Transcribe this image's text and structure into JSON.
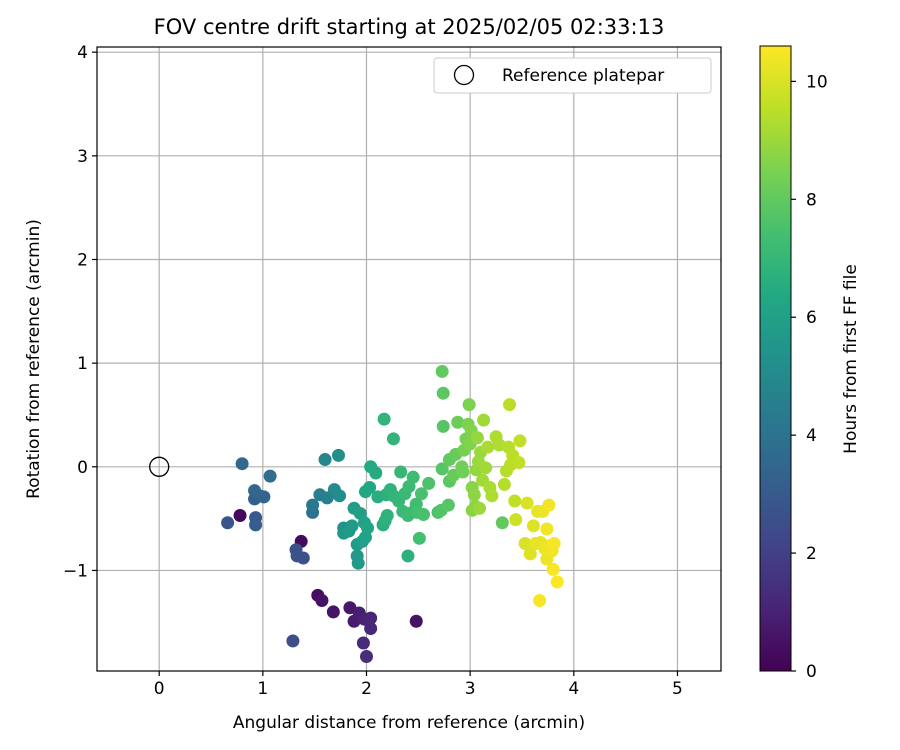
{
  "chart_data": {
    "type": "scatter",
    "title": "FOV centre drift starting at 2025/02/05 02:33:13",
    "xlabel": "Angular distance from reference (arcmin)",
    "ylabel": "Rotation from reference (arcmin)",
    "xlim": [
      -0.6,
      5.42
    ],
    "ylim": [
      -1.97,
      4.05
    ],
    "xticks": [
      0,
      1,
      2,
      3,
      4,
      5
    ],
    "yticks": [
      -1,
      0,
      1,
      2,
      3,
      4
    ],
    "xtick_labels": [
      "0",
      "1",
      "2",
      "3",
      "4",
      "5"
    ],
    "ytick_labels": [
      "−1",
      "0",
      "1",
      "2",
      "3",
      "4"
    ],
    "grid": true,
    "legend_position": "top-right",
    "legend": {
      "label": "Reference platepar",
      "marker": "open-circle"
    },
    "reference_point": {
      "x": 0,
      "y": 0
    },
    "colorbar": {
      "label": "Hours from first FF file",
      "colormap": "viridis",
      "range": [
        0,
        10.6
      ],
      "ticks": [
        0,
        2,
        4,
        6,
        8,
        10
      ],
      "tick_labels": [
        "0",
        "2",
        "4",
        "6",
        "8",
        "10"
      ]
    },
    "points": [
      {
        "x": 0.78,
        "y": -0.47,
        "c": 0.2
      },
      {
        "x": 1.37,
        "y": -0.72,
        "c": 0.3
      },
      {
        "x": 1.53,
        "y": -1.24,
        "c": 0.4
      },
      {
        "x": 1.57,
        "y": -1.29,
        "c": 0.5
      },
      {
        "x": 1.68,
        "y": -1.4,
        "c": 0.6
      },
      {
        "x": 1.84,
        "y": -1.36,
        "c": 0.7
      },
      {
        "x": 1.88,
        "y": -1.49,
        "c": 0.8
      },
      {
        "x": 1.93,
        "y": -1.41,
        "c": 0.9
      },
      {
        "x": 1.98,
        "y": -1.47,
        "c": 1.0
      },
      {
        "x": 2.04,
        "y": -1.46,
        "c": 1.1
      },
      {
        "x": 2.04,
        "y": -1.56,
        "c": 1.2
      },
      {
        "x": 1.97,
        "y": -1.7,
        "c": 1.3
      },
      {
        "x": 2.0,
        "y": -1.83,
        "c": 1.4
      },
      {
        "x": 2.48,
        "y": -1.49,
        "c": 0.5
      },
      {
        "x": 1.29,
        "y": -1.68,
        "c": 2.5
      },
      {
        "x": 1.32,
        "y": -0.8,
        "c": 2.6
      },
      {
        "x": 1.33,
        "y": -0.86,
        "c": 2.7
      },
      {
        "x": 1.39,
        "y": -0.88,
        "c": 2.6
      },
      {
        "x": 0.66,
        "y": -0.54,
        "c": 2.8
      },
      {
        "x": 0.93,
        "y": -0.49,
        "c": 3.0
      },
      {
        "x": 0.93,
        "y": -0.56,
        "c": 3.1
      },
      {
        "x": 0.92,
        "y": -0.31,
        "c": 3.2
      },
      {
        "x": 0.97,
        "y": -0.28,
        "c": 3.3
      },
      {
        "x": 1.01,
        "y": -0.29,
        "c": 3.4
      },
      {
        "x": 0.92,
        "y": -0.23,
        "c": 3.5
      },
      {
        "x": 0.8,
        "y": 0.03,
        "c": 3.6
      },
      {
        "x": 1.07,
        "y": -0.09,
        "c": 3.8
      },
      {
        "x": 1.48,
        "y": -0.44,
        "c": 4.0
      },
      {
        "x": 1.48,
        "y": -0.37,
        "c": 4.2
      },
      {
        "x": 1.55,
        "y": -0.27,
        "c": 4.5
      },
      {
        "x": 1.62,
        "y": -0.3,
        "c": 4.6
      },
      {
        "x": 1.6,
        "y": 0.07,
        "c": 4.8
      },
      {
        "x": 1.69,
        "y": -0.22,
        "c": 5.0
      },
      {
        "x": 1.74,
        "y": -0.28,
        "c": 5.1
      },
      {
        "x": 1.73,
        "y": 0.11,
        "c": 5.2
      },
      {
        "x": 1.78,
        "y": -0.59,
        "c": 5.4
      },
      {
        "x": 1.78,
        "y": -0.64,
        "c": 5.5
      },
      {
        "x": 1.83,
        "y": -0.62,
        "c": 5.6
      },
      {
        "x": 1.86,
        "y": -0.57,
        "c": 5.7
      },
      {
        "x": 1.88,
        "y": -0.4,
        "c": 5.8
      },
      {
        "x": 1.91,
        "y": -0.86,
        "c": 5.6
      },
      {
        "x": 1.92,
        "y": -0.93,
        "c": 5.7
      },
      {
        "x": 1.91,
        "y": -0.75,
        "c": 5.8
      },
      {
        "x": 1.94,
        "y": -0.45,
        "c": 5.9
      },
      {
        "x": 1.96,
        "y": -0.72,
        "c": 6.0
      },
      {
        "x": 1.99,
        "y": -0.68,
        "c": 6.1
      },
      {
        "x": 1.98,
        "y": -0.54,
        "c": 6.1
      },
      {
        "x": 2.01,
        "y": -0.59,
        "c": 6.2
      },
      {
        "x": 1.99,
        "y": -0.24,
        "c": 6.3
      },
      {
        "x": 2.03,
        "y": -0.2,
        "c": 6.3
      },
      {
        "x": 2.04,
        "y": 0.0,
        "c": 6.4
      },
      {
        "x": 2.09,
        "y": -0.06,
        "c": 6.5
      },
      {
        "x": 2.11,
        "y": -0.29,
        "c": 6.6
      },
      {
        "x": 2.16,
        "y": -0.56,
        "c": 6.6
      },
      {
        "x": 2.18,
        "y": -0.52,
        "c": 6.7
      },
      {
        "x": 2.19,
        "y": -0.27,
        "c": 6.7
      },
      {
        "x": 2.2,
        "y": -0.47,
        "c": 6.8
      },
      {
        "x": 2.23,
        "y": -0.22,
        "c": 6.8
      },
      {
        "x": 2.26,
        "y": -0.28,
        "c": 6.9
      },
      {
        "x": 2.17,
        "y": 0.46,
        "c": 6.9
      },
      {
        "x": 2.26,
        "y": 0.27,
        "c": 6.9
      },
      {
        "x": 2.31,
        "y": -0.33,
        "c": 7.0
      },
      {
        "x": 2.33,
        "y": -0.05,
        "c": 7.0
      },
      {
        "x": 2.35,
        "y": -0.43,
        "c": 7.1
      },
      {
        "x": 2.37,
        "y": -0.26,
        "c": 7.1
      },
      {
        "x": 2.4,
        "y": -0.47,
        "c": 7.2
      },
      {
        "x": 2.4,
        "y": -0.86,
        "c": 6.7
      },
      {
        "x": 2.41,
        "y": -0.19,
        "c": 7.2
      },
      {
        "x": 2.44,
        "y": -0.44,
        "c": 7.2
      },
      {
        "x": 2.45,
        "y": -0.1,
        "c": 7.3
      },
      {
        "x": 2.48,
        "y": -0.36,
        "c": 7.3
      },
      {
        "x": 2.49,
        "y": -0.44,
        "c": 7.4
      },
      {
        "x": 2.51,
        "y": -0.69,
        "c": 7.4
      },
      {
        "x": 2.53,
        "y": -0.26,
        "c": 7.5
      },
      {
        "x": 2.55,
        "y": -0.46,
        "c": 7.5
      },
      {
        "x": 2.6,
        "y": -0.16,
        "c": 7.6
      },
      {
        "x": 2.69,
        "y": -0.44,
        "c": 7.6
      },
      {
        "x": 2.72,
        "y": -0.42,
        "c": 7.7
      },
      {
        "x": 2.73,
        "y": -0.02,
        "c": 7.8
      },
      {
        "x": 2.74,
        "y": 0.39,
        "c": 7.8
      },
      {
        "x": 2.74,
        "y": 0.71,
        "c": 7.9
      },
      {
        "x": 2.73,
        "y": 0.92,
        "c": 8.0
      },
      {
        "x": 2.79,
        "y": -0.37,
        "c": 7.8
      },
      {
        "x": 2.8,
        "y": -0.14,
        "c": 7.9
      },
      {
        "x": 2.8,
        "y": 0.07,
        "c": 8.0
      },
      {
        "x": 2.84,
        "y": -0.08,
        "c": 8.1
      },
      {
        "x": 2.86,
        "y": 0.12,
        "c": 8.1
      },
      {
        "x": 2.88,
        "y": 0.43,
        "c": 8.2
      },
      {
        "x": 2.92,
        "y": 0.0,
        "c": 8.3
      },
      {
        "x": 2.93,
        "y": -0.05,
        "c": 8.3
      },
      {
        "x": 2.94,
        "y": 0.16,
        "c": 8.4
      },
      {
        "x": 2.96,
        "y": 0.27,
        "c": 8.4
      },
      {
        "x": 2.98,
        "y": 0.41,
        "c": 8.5
      },
      {
        "x": 2.99,
        "y": 0.6,
        "c": 8.5
      },
      {
        "x": 3.0,
        "y": 0.22,
        "c": 8.6
      },
      {
        "x": 3.01,
        "y": 0.35,
        "c": 8.6
      },
      {
        "x": 3.02,
        "y": -0.2,
        "c": 8.7
      },
      {
        "x": 3.02,
        "y": -0.42,
        "c": 8.7
      },
      {
        "x": 3.04,
        "y": -0.27,
        "c": 8.8
      },
      {
        "x": 3.05,
        "y": -0.38,
        "c": 8.8
      },
      {
        "x": 3.06,
        "y": -0.03,
        "c": 8.9
      },
      {
        "x": 3.07,
        "y": 0.28,
        "c": 8.9
      },
      {
        "x": 3.08,
        "y": 0.05,
        "c": 9.0
      },
      {
        "x": 3.09,
        "y": -0.4,
        "c": 9.0
      },
      {
        "x": 3.1,
        "y": 0.14,
        "c": 9.0
      },
      {
        "x": 3.12,
        "y": -0.13,
        "c": 9.1
      },
      {
        "x": 3.13,
        "y": 0.45,
        "c": 9.1
      },
      {
        "x": 3.15,
        "y": -0.01,
        "c": 9.1
      },
      {
        "x": 3.17,
        "y": 0.19,
        "c": 9.2
      },
      {
        "x": 3.19,
        "y": -0.2,
        "c": 9.2
      },
      {
        "x": 3.21,
        "y": -0.28,
        "c": 9.3
      },
      {
        "x": 3.25,
        "y": 0.29,
        "c": 9.3
      },
      {
        "x": 3.28,
        "y": 0.21,
        "c": 9.3
      },
      {
        "x": 3.31,
        "y": -0.54,
        "c": 8.0
      },
      {
        "x": 3.33,
        "y": -0.17,
        "c": 9.4
      },
      {
        "x": 3.35,
        "y": -0.04,
        "c": 9.4
      },
      {
        "x": 3.37,
        "y": 0.19,
        "c": 9.4
      },
      {
        "x": 3.38,
        "y": 0.6,
        "c": 9.5
      },
      {
        "x": 3.39,
        "y": 0.02,
        "c": 9.5
      },
      {
        "x": 3.41,
        "y": 0.11,
        "c": 9.5
      },
      {
        "x": 3.43,
        "y": -0.33,
        "c": 9.6
      },
      {
        "x": 3.44,
        "y": -0.51,
        "c": 9.8
      },
      {
        "x": 3.47,
        "y": 0.04,
        "c": 9.6
      },
      {
        "x": 3.48,
        "y": 0.25,
        "c": 9.6
      },
      {
        "x": 3.53,
        "y": -0.74,
        "c": 10.0
      },
      {
        "x": 3.55,
        "y": -0.35,
        "c": 10.0
      },
      {
        "x": 3.58,
        "y": -0.84,
        "c": 10.1
      },
      {
        "x": 3.61,
        "y": -0.57,
        "c": 10.1
      },
      {
        "x": 3.63,
        "y": -0.74,
        "c": 10.2
      },
      {
        "x": 3.65,
        "y": -0.43,
        "c": 10.2
      },
      {
        "x": 3.67,
        "y": -1.29,
        "c": 10.5
      },
      {
        "x": 3.68,
        "y": -0.73,
        "c": 10.2
      },
      {
        "x": 3.7,
        "y": -0.43,
        "c": 10.3
      },
      {
        "x": 3.72,
        "y": -0.79,
        "c": 10.3
      },
      {
        "x": 3.74,
        "y": -0.89,
        "c": 10.3
      },
      {
        "x": 3.74,
        "y": -0.6,
        "c": 10.4
      },
      {
        "x": 3.76,
        "y": -0.37,
        "c": 10.4
      },
      {
        "x": 3.77,
        "y": -0.76,
        "c": 10.4
      },
      {
        "x": 3.79,
        "y": -0.81,
        "c": 10.4
      },
      {
        "x": 3.8,
        "y": -0.99,
        "c": 10.5
      },
      {
        "x": 3.81,
        "y": -0.74,
        "c": 10.5
      },
      {
        "x": 3.84,
        "y": -1.11,
        "c": 10.6
      }
    ]
  }
}
